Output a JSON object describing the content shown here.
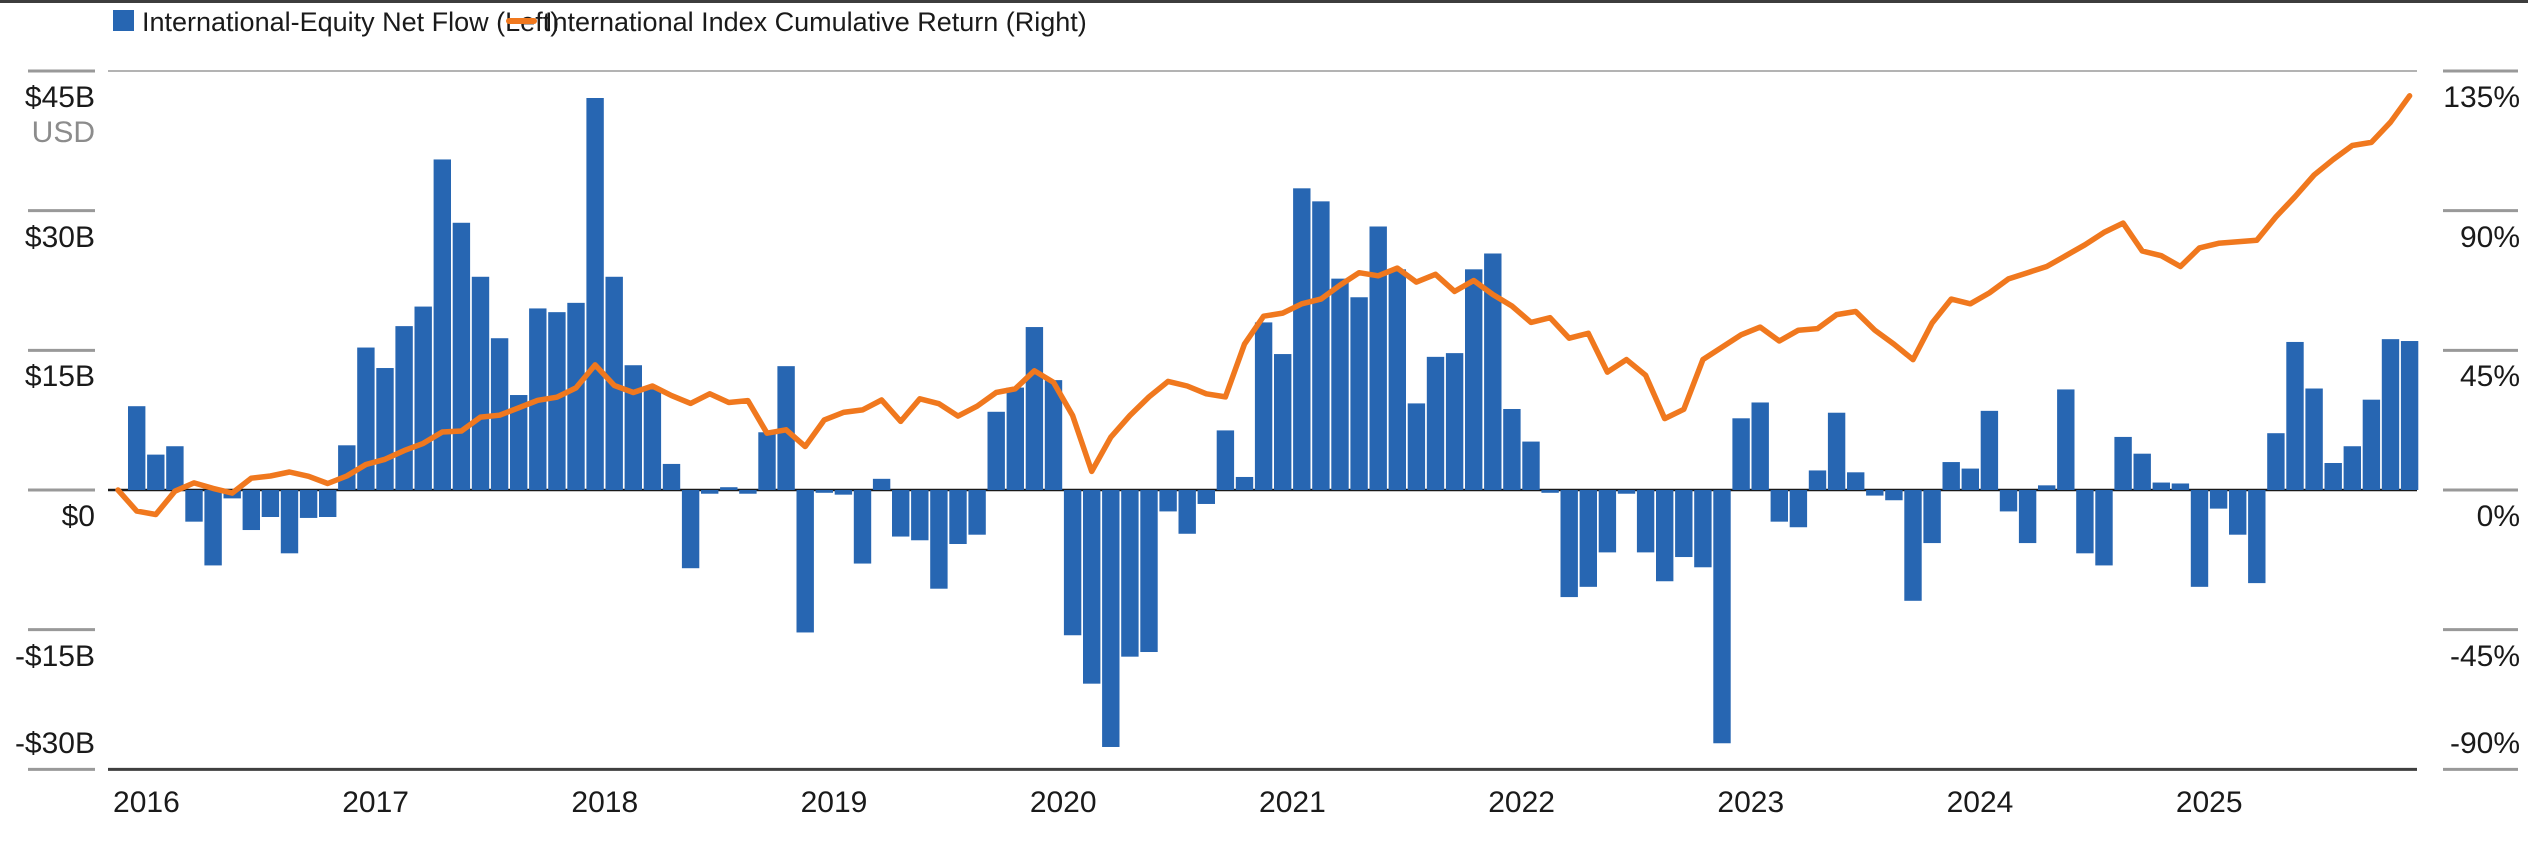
{
  "legend": {
    "flow_label": "International-Equity Net Flow (Left)",
    "return_label": "International Index Cumulative Return (Right)"
  },
  "colors": {
    "bar": "#2766B2",
    "line": "#F0781E",
    "zero_line": "#1a1a1a",
    "axis_line": "#3f3f3f",
    "tick_line": "#999999",
    "top_grid": "#b3b3b3",
    "text": "#1a1a1a",
    "muted_text": "#8c8c8c"
  },
  "left_axis": {
    "unit": "USD",
    "tick_labels": [
      "$45B",
      "$30B",
      "$15B",
      "$0",
      "-$15B",
      "-$30B"
    ],
    "tick_values": [
      45,
      30,
      15,
      0,
      -15,
      -30
    ]
  },
  "right_axis": {
    "tick_labels": [
      "135%",
      "90%",
      "45%",
      "0%",
      "-45%",
      "-90%"
    ],
    "tick_values": [
      135,
      90,
      45,
      0,
      -45,
      -90
    ]
  },
  "x_axis": {
    "year_labels": [
      "2016",
      "2017",
      "2018",
      "2019",
      "2020",
      "2021",
      "2022",
      "2023",
      "2024",
      "2025"
    ]
  },
  "chart_data": {
    "type": "bar+line combo",
    "title": "",
    "x": [
      "2016-01",
      "2016-02",
      "2016-03",
      "2016-04",
      "2016-05",
      "2016-06",
      "2016-07",
      "2016-08",
      "2016-09",
      "2016-10",
      "2016-11",
      "2016-12",
      "2017-01",
      "2017-02",
      "2017-03",
      "2017-04",
      "2017-05",
      "2017-06",
      "2017-07",
      "2017-08",
      "2017-09",
      "2017-10",
      "2017-11",
      "2017-12",
      "2018-01",
      "2018-02",
      "2018-03",
      "2018-04",
      "2018-05",
      "2018-06",
      "2018-07",
      "2018-08",
      "2018-09",
      "2018-10",
      "2018-11",
      "2018-12",
      "2019-01",
      "2019-02",
      "2019-03",
      "2019-04",
      "2019-05",
      "2019-06",
      "2019-07",
      "2019-08",
      "2019-09",
      "2019-10",
      "2019-11",
      "2019-12",
      "2020-01",
      "2020-02",
      "2020-03",
      "2020-04",
      "2020-05",
      "2020-06",
      "2020-07",
      "2020-08",
      "2020-09",
      "2020-10",
      "2020-11",
      "2020-12",
      "2021-01",
      "2021-02",
      "2021-03",
      "2021-04",
      "2021-05",
      "2021-06",
      "2021-07",
      "2021-08",
      "2021-09",
      "2021-10",
      "2021-11",
      "2021-12",
      "2022-01",
      "2022-02",
      "2022-03",
      "2022-04",
      "2022-05",
      "2022-06",
      "2022-07",
      "2022-08",
      "2022-09",
      "2022-10",
      "2022-11",
      "2022-12",
      "2023-01",
      "2023-02",
      "2023-03",
      "2023-04",
      "2023-05",
      "2023-06",
      "2023-07",
      "2023-08",
      "2023-09",
      "2023-10",
      "2023-11",
      "2023-12",
      "2024-01",
      "2024-02",
      "2024-03",
      "2024-04",
      "2024-05",
      "2024-06",
      "2024-07",
      "2024-08",
      "2024-09",
      "2024-10",
      "2024-11",
      "2024-12",
      "2025-01",
      "2025-02",
      "2025-03",
      "2025-04",
      "2025-05",
      "2025-06",
      "2025-07",
      "2025-08",
      "2025-09",
      "2025-10",
      "2025-11",
      "2025-12"
    ],
    "series": [
      {
        "name": "International-Equity Net Flow (Left)",
        "kind": "bar",
        "axis": "left",
        "unit": "$B USD",
        "values": [
          9.0,
          3.8,
          4.7,
          -3.4,
          -8.1,
          -0.9,
          -4.3,
          -2.9,
          -6.8,
          -3.0,
          -2.9,
          4.8,
          15.3,
          13.1,
          17.6,
          19.7,
          35.5,
          28.7,
          22.9,
          16.3,
          10.2,
          19.5,
          19.1,
          20.1,
          42.1,
          22.9,
          13.4,
          11.0,
          2.8,
          -8.4,
          -0.4,
          0.3,
          -0.4,
          6.2,
          13.3,
          -15.3,
          -0.3,
          -0.5,
          -7.9,
          1.2,
          -5.0,
          -5.4,
          -10.6,
          -5.8,
          -4.8,
          8.4,
          11.0,
          17.5,
          11.8,
          -15.6,
          -20.8,
          -27.6,
          -17.9,
          -17.4,
          -2.3,
          -4.7,
          -1.5,
          6.4,
          1.4,
          18.0,
          14.6,
          32.4,
          31.0,
          22.7,
          20.7,
          28.3,
          23.7,
          9.3,
          14.3,
          14.7,
          23.7,
          25.4,
          8.7,
          5.2,
          -0.3,
          -11.5,
          -10.4,
          -6.7,
          -0.4,
          -6.7,
          -9.8,
          -7.2,
          -8.3,
          -27.2,
          7.7,
          9.4,
          -3.4,
          -4.0,
          2.1,
          8.3,
          1.9,
          -0.6,
          -1.1,
          -11.9,
          -5.7,
          3.0,
          2.3,
          8.5,
          -2.3,
          -5.7,
          0.5,
          10.8,
          -6.8,
          -8.1,
          5.7,
          3.9,
          0.8,
          0.7,
          -10.4,
          -2.0,
          -4.8,
          -10.0,
          6.1,
          15.9,
          10.9,
          2.9,
          4.7,
          9.7,
          16.2,
          16.0
        ]
      },
      {
        "name": "International Index Cumulative Return (Right)",
        "kind": "line",
        "axis": "right",
        "unit": "%",
        "baseline_start": 0,
        "values": [
          -6.8,
          -7.9,
          -0.4,
          2.3,
          0.5,
          -1.0,
          3.8,
          4.5,
          5.8,
          4.4,
          2.1,
          4.5,
          8.2,
          9.9,
          12.7,
          15.0,
          18.7,
          19.0,
          23.5,
          24.1,
          26.5,
          28.9,
          29.9,
          32.9,
          40.3,
          33.7,
          31.4,
          33.5,
          30.4,
          27.9,
          31.0,
          28.2,
          28.8,
          18.3,
          19.4,
          14.0,
          22.6,
          25.0,
          25.8,
          29.0,
          22.1,
          29.4,
          27.8,
          23.8,
          27.0,
          31.4,
          32.6,
          38.4,
          34.7,
          24.0,
          6.0,
          17.0,
          24.0,
          30.0,
          35.0,
          33.5,
          31.0,
          30.0,
          47.0,
          56.0,
          57.0,
          60.0,
          61.5,
          66.0,
          70.0,
          69.0,
          71.5,
          67.0,
          69.5,
          64.0,
          67.5,
          63.0,
          59.3,
          54.0,
          55.5,
          48.9,
          50.5,
          38.0,
          42.0,
          37.0,
          23.0,
          26.0,
          42.0,
          46.0,
          50.0,
          52.5,
          48.0,
          51.5,
          52.0,
          56.5,
          57.5,
          51.5,
          47.0,
          42.0,
          53.8,
          61.5,
          60.0,
          63.5,
          68.0,
          70.0,
          72.0,
          75.5,
          79.0,
          83.0,
          86.0,
          77.0,
          75.5,
          72.0,
          78.0,
          79.5,
          80.0,
          80.5,
          88.0,
          94.5,
          101.5,
          106.5,
          111.0,
          112.0,
          118.5,
          127.0
        ]
      }
    ],
    "ylim_left": [
      -30,
      45
    ],
    "ylim_right": [
      -90,
      135
    ],
    "grid": "ticks only; dark zero line and bottom axis; light gridline at top tick row",
    "legend_position": "top-left"
  }
}
